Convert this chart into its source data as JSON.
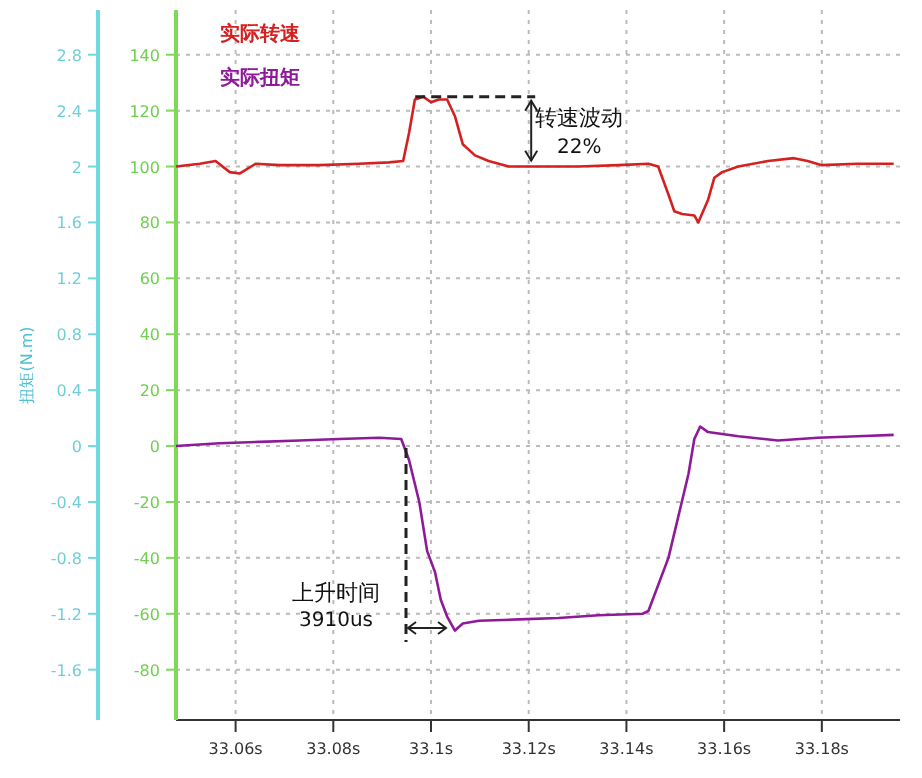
{
  "chart_data": {
    "type": "line",
    "y2label": "扭矩(N.m)",
    "xlim": [
      33.0478,
      33.196
    ],
    "xticks": [
      {
        "value": 33.06,
        "label": "33.06s"
      },
      {
        "value": 33.08,
        "label": "33.08s"
      },
      {
        "value": 33.1,
        "label": "33.1s"
      },
      {
        "value": 33.12,
        "label": "33.12s"
      },
      {
        "value": 33.14,
        "label": "33.14s"
      },
      {
        "value": 33.16,
        "label": "33.16s"
      },
      {
        "value": 33.18,
        "label": "33.18s"
      }
    ],
    "ylim": [
      -98,
      156
    ],
    "yticks": [
      -80,
      -60,
      -40,
      -20,
      0,
      20,
      40,
      60,
      80,
      100,
      120,
      140
    ],
    "y2lim": [
      -1.96,
      3.12
    ],
    "y2ticks": [
      -1.6,
      -1.2,
      -0.8,
      -0.4,
      0,
      0.4,
      0.8,
      1.2,
      1.6,
      2,
      2.4,
      2.8
    ],
    "grid": true,
    "legend": "top left",
    "marker": "none",
    "line_style": "solid",
    "series": [
      {
        "name": "实际转速",
        "color": "#d42020",
        "x": [
          33.0478,
          33.0527,
          33.0559,
          33.0588,
          33.0608,
          33.0641,
          33.069,
          33.0771,
          33.0853,
          33.0914,
          33.0943,
          33.0955,
          33.0967,
          33.0984,
          33.1,
          33.1016,
          33.1033,
          33.1049,
          33.1065,
          33.109,
          33.1118,
          33.1159,
          33.122,
          33.1302,
          33.1384,
          33.1445,
          33.1465,
          33.1486,
          33.1498,
          33.1514,
          33.1539,
          33.1547,
          33.1567,
          33.158,
          33.1596,
          33.1629,
          33.169,
          33.1743,
          33.1771,
          33.18,
          33.1873,
          33.1947
        ],
        "values": [
          100,
          101,
          102,
          98,
          97.5,
          101,
          100.5,
          100.5,
          101,
          101.5,
          102,
          112,
          124,
          125,
          123,
          124,
          124,
          118,
          108,
          104,
          102,
          100,
          100,
          100,
          100.5,
          101,
          100,
          90,
          84,
          83,
          82.5,
          80,
          88,
          96,
          98,
          100,
          102,
          103,
          102,
          100.5,
          101,
          101
        ]
      },
      {
        "name": "实际扭矩",
        "color": "#8e1a9a",
        "axis": "y2",
        "x": [
          33.0478,
          33.0567,
          33.0649,
          33.0731,
          33.0812,
          33.0894,
          33.0939,
          33.0955,
          33.0976,
          33.0992,
          33.1008,
          33.102,
          33.1033,
          33.1049,
          33.1065,
          33.1098,
          33.118,
          33.1261,
          33.1343,
          33.1433,
          33.1445,
          33.1486,
          33.1527,
          33.1539,
          33.1551,
          33.1567,
          33.1629,
          33.171,
          33.1792,
          33.1873,
          33.1947
        ],
        "values": [
          0,
          0.02,
          0.03,
          0.04,
          0.05,
          0.06,
          0.05,
          -0.1,
          -0.4,
          -0.75,
          -0.9,
          -1.1,
          -1.22,
          -1.32,
          -1.27,
          -1.25,
          -1.24,
          -1.23,
          -1.21,
          -1.2,
          -1.18,
          -0.8,
          -0.2,
          0.05,
          0.14,
          0.1,
          0.07,
          0.04,
          0.06,
          0.07,
          0.08
        ]
      }
    ],
    "annotations": [
      {
        "text": "转速波动",
        "x": 33.0984,
        "y": 125
      },
      "22%",
      "上升时间",
      "3910us"
    ]
  }
}
